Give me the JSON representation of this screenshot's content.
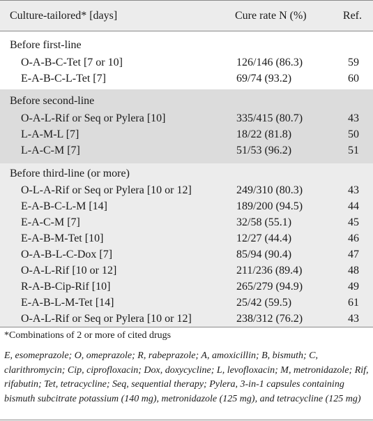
{
  "header": {
    "col1": "Culture-tailored* [days]",
    "col2": "Cure rate N (%)",
    "col3": "Ref."
  },
  "sections": [
    {
      "title": "Before first-line",
      "rows": [
        {
          "regimen": "O-A-B-C-Tet [7 or 10]",
          "cure": "126/146 (86.3)",
          "ref": "59"
        },
        {
          "regimen": "E-A-B-C-L-Tet [7]",
          "cure": "69/74 (93.2)",
          "ref": "60"
        }
      ]
    },
    {
      "title": "Before second-line",
      "rows": [
        {
          "regimen": "O-A-L-Rif or Seq or Pylera [10]",
          "cure": "335/415 (80.7)",
          "ref": "43"
        },
        {
          "regimen": "L-A-M-L [7]",
          "cure": "18/22 (81.8)",
          "ref": "50"
        },
        {
          "regimen": "L-A-C-M [7]",
          "cure": "51/53 (96.2)",
          "ref": "51"
        }
      ]
    },
    {
      "title": "Before third-line (or more)",
      "rows": [
        {
          "regimen": "O-L-A-Rif or Seq or Pylera [10 or 12]",
          "cure": "249/310 (80.3)",
          "ref": "43"
        },
        {
          "regimen": "E-A-B-C-L-M [14]",
          "cure": "189/200 (94.5)",
          "ref": "44"
        },
        {
          "regimen": "E-A-C-M [7]",
          "cure": "32/58 (55.1)",
          "ref": "45"
        },
        {
          "regimen": "E-A-B-M-Tet [10]",
          "cure": "12/27 (44.4)",
          "ref": "46"
        },
        {
          "regimen": "O-A-B-L-C-Dox [7]",
          "cure": "85/94 (90.4)",
          "ref": "47"
        },
        {
          "regimen": "O-A-L-Rif [10 or 12]",
          "cure": "211/236 (89.4)",
          "ref": "48"
        },
        {
          "regimen": "R-A-B-Cip-Rif [10]",
          "cure": "265/279 (94.9)",
          "ref": "49"
        },
        {
          "regimen": "E-A-B-L-M-Tet [14]",
          "cure": "25/42 (59.5)",
          "ref": "61"
        },
        {
          "regimen": "O-A-L-Rif or Seq or Pylera [10 or 12]",
          "cure": "238/312 (76.2)",
          "ref": "43"
        }
      ]
    }
  ],
  "footnotes": {
    "note1": "*Combinations of 2 or more of cited drugs",
    "abbreviations": "E, esomeprazole; O, omeprazole; R, rabeprazole; A, amoxicillin; B, bismuth; C, clarithromycin; Cip, ciprofloxacin; Dox, doxycycline; L, levofloxacin; M, metronidazole; Rif, rifabutin; Tet, tetracycline; Seq, sequential therapy; Pylera, 3-in-1 capsules containing bismuth subcitrate potassium (140 mg), metronidazole (125 mg), and tetracycline (125 mg)"
  },
  "colors": {
    "header_bg": "#ececec",
    "section_alt_bg": "#dcdcdc",
    "rule": "#8a8a8a"
  }
}
